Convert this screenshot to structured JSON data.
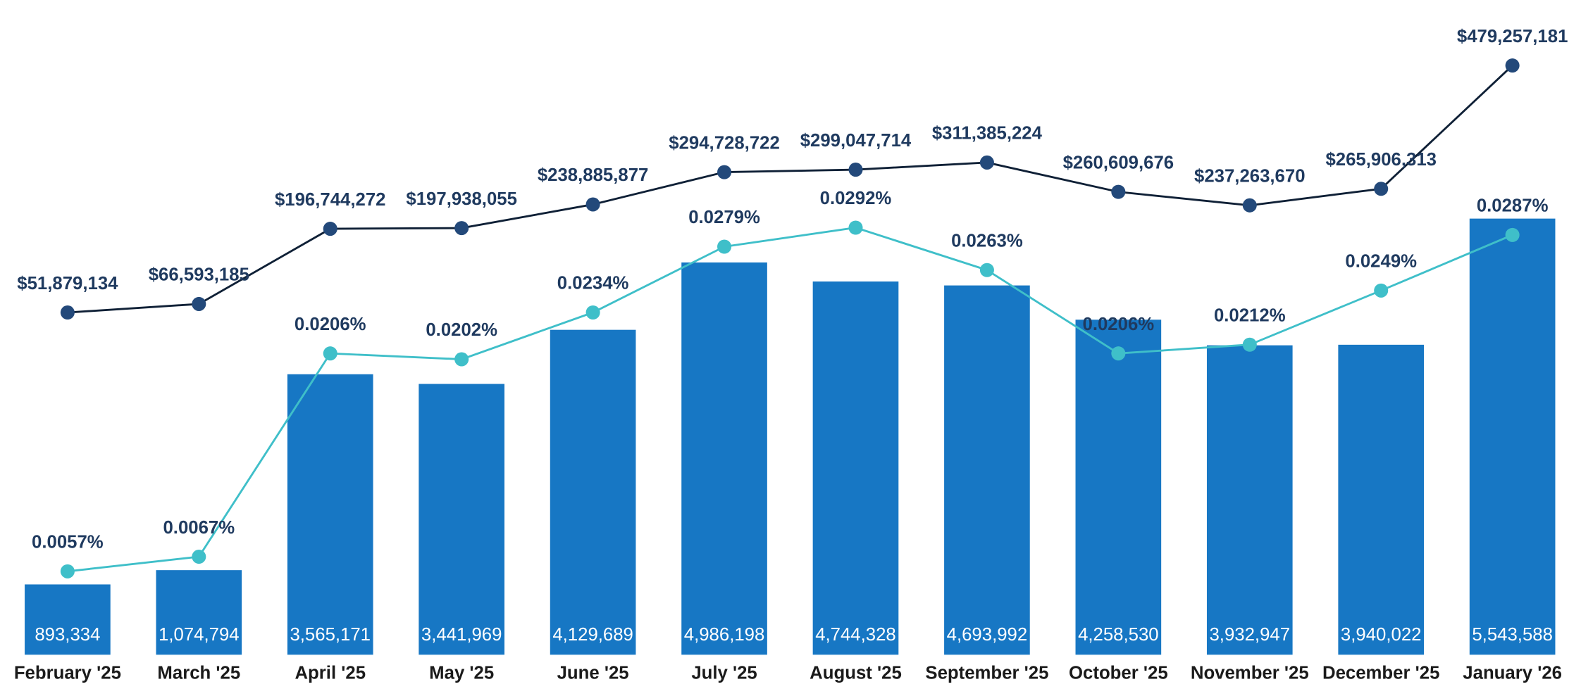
{
  "chart_data": {
    "type": "combo",
    "categories": [
      "February '25",
      "March '25",
      "April '25",
      "May '25",
      "June '25",
      "July '25",
      "August '25",
      "September '25",
      "October '25",
      "November '25",
      "December '25",
      "January '26"
    ],
    "series": [
      {
        "type": "bar",
        "color": "#1777c4",
        "values": [
          893334,
          1074794,
          3565171,
          3441969,
          4129689,
          4986198,
          4744328,
          4693992,
          4258530,
          3932947,
          3940022,
          5543588
        ],
        "value_labels": [
          "893,334",
          "1,074,794",
          "3,565,171",
          "3,441,969",
          "4,129,689",
          "4,986,198",
          "4,744,328",
          "4,693,992",
          "4,258,530",
          "3,932,947",
          "3,940,022",
          "5,543,588"
        ]
      },
      {
        "type": "line",
        "color": "#0f2036",
        "marker_color": "#23497a",
        "values": [
          51879134,
          66593185,
          196744272,
          197938055,
          238885877,
          294728722,
          299047714,
          311385224,
          260609676,
          237263670,
          265906313,
          479257181
        ],
        "value_labels": [
          "$51,879,134",
          "$66,593,185",
          "$196,744,272",
          "$197,938,055",
          "$238,885,877",
          "$294,728,722",
          "$299,047,714",
          "$311,385,224",
          "$260,609,676",
          "$237,263,670",
          "$265,906,313",
          "$479,257,181"
        ]
      },
      {
        "type": "line",
        "color": "#3fbfc9",
        "marker_color": "#3fbfc9",
        "values": [
          0.0057,
          0.0067,
          0.0206,
          0.0202,
          0.0234,
          0.0279,
          0.0292,
          0.0263,
          0.0206,
          0.0212,
          0.0249,
          0.0287
        ],
        "value_labels": [
          "0.0057%",
          "0.0067%",
          "0.0206%",
          "0.0202%",
          "0.0234%",
          "0.0279%",
          "0.0292%",
          "0.0263%",
          "0.0206%",
          "0.0212%",
          "0.0249%",
          "0.0287%"
        ]
      }
    ]
  }
}
